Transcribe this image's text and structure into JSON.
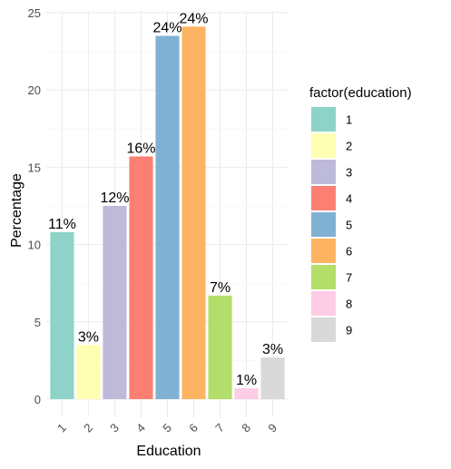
{
  "chart_data": {
    "type": "bar",
    "xlabel": "Education",
    "ylabel": "Percentage",
    "categories": [
      "1",
      "2",
      "3",
      "4",
      "5",
      "6",
      "7",
      "8",
      "9"
    ],
    "values": [
      10.8,
      3.5,
      12.5,
      15.7,
      23.5,
      24.1,
      6.7,
      0.7,
      2.7
    ],
    "data_labels": [
      "11%",
      "3%",
      "12%",
      "16%",
      "24%",
      "24%",
      "7%",
      "1%",
      "3%"
    ],
    "ylim": [
      0,
      25
    ],
    "yticks": [
      0,
      5,
      10,
      15,
      20,
      25
    ],
    "grid": true,
    "legend": {
      "title": "factor(education)",
      "position": "right",
      "entries": [
        "1",
        "2",
        "3",
        "4",
        "5",
        "6",
        "7",
        "8",
        "9"
      ]
    },
    "colors": [
      "#8DD3C7",
      "#FFFFB3",
      "#BEBADA",
      "#FB8072",
      "#80B1D3",
      "#FDB462",
      "#B3DE69",
      "#FCCDE5",
      "#D9D9D9"
    ]
  }
}
